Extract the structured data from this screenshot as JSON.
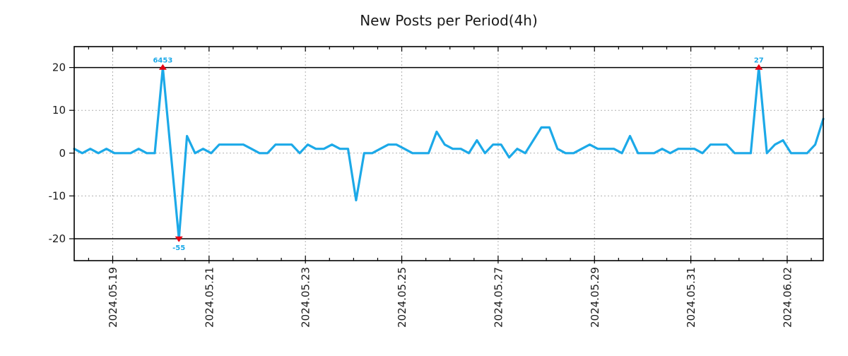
{
  "title": "New Posts per Period(4h)",
  "colors": {
    "line": "#1ca9e8",
    "annotation_text": "#1ca9e8",
    "marker": "#e60012",
    "grid": "#b0b0b0",
    "axis": "#000000",
    "tick_text": "#1a1a1a",
    "background": "#ffffff"
  },
  "chart_data": {
    "type": "line",
    "title": "New Posts per Period(4h)",
    "period_hours": 4,
    "grid": true,
    "legend": null,
    "xlabel": "",
    "ylabel": "",
    "ylim": [
      -25,
      25
    ],
    "clip": [
      -20,
      20
    ],
    "yticks": [
      20,
      10,
      0,
      -10,
      -20
    ],
    "ytick_labels": [
      "20",
      "10",
      "0",
      "-10",
      "-20"
    ],
    "xtick_labels": [
      "2024.05.19",
      "2024.05.21",
      "2024.05.23",
      "2024.05.25",
      "2024.05.27",
      "2024.05.29",
      "2024.05.31",
      "2024.06.02"
    ],
    "values": [
      1,
      0,
      1,
      0,
      1,
      0,
      0,
      0,
      1,
      0,
      0,
      6453,
      0,
      -55,
      4,
      0,
      1,
      0,
      2,
      2,
      2,
      2,
      1,
      0,
      0,
      2,
      2,
      2,
      0,
      2,
      1,
      1,
      2,
      1,
      1,
      -11,
      0,
      0,
      1,
      2,
      2,
      1,
      0,
      0,
      0,
      5,
      2,
      1,
      1,
      0,
      3,
      0,
      2,
      2,
      -1,
      1,
      0,
      3,
      6,
      6,
      1,
      0,
      0,
      1,
      2,
      1,
      1,
      1,
      0,
      4,
      0,
      0,
      0,
      1,
      0,
      1,
      1,
      1,
      0,
      2,
      2,
      2,
      0,
      0,
      0,
      27,
      0,
      2,
      3,
      0,
      0,
      0,
      2,
      8
    ],
    "annotations": [
      {
        "index": 11,
        "value": 6453,
        "label": "6453",
        "marker": "up"
      },
      {
        "index": 13,
        "value": -55,
        "label": "-55",
        "marker": "down"
      },
      {
        "index": 85,
        "value": 27,
        "label": "27",
        "marker": "up"
      }
    ]
  }
}
